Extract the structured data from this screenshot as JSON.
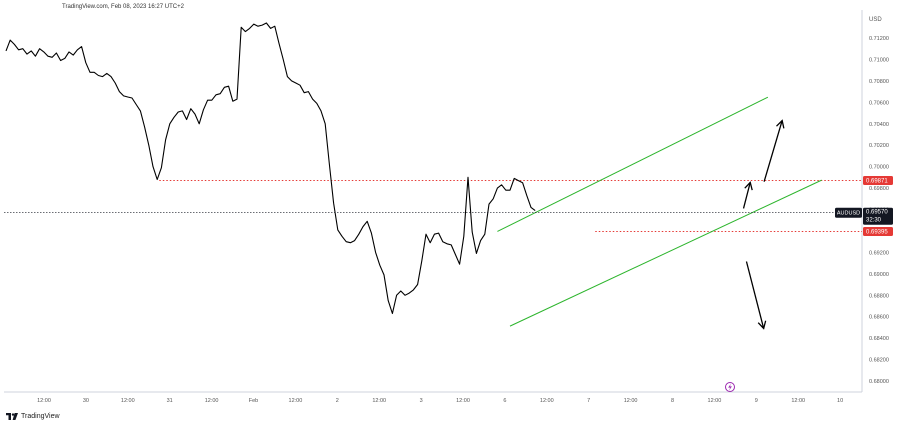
{
  "header": {
    "source": "TradingView.com, Feb 08, 2023 16:27 UTC+2"
  },
  "footer": {
    "brand": "TradingView"
  },
  "price_axis": {
    "currency": "USD",
    "ticks": [
      "0.71200",
      "0.71000",
      "0.70800",
      "0.70600",
      "0.70400",
      "0.70200",
      "0.70000",
      "0.69800",
      "0.69600",
      "0.69400",
      "0.69200",
      "0.69000",
      "0.68800",
      "0.68600",
      "0.68400",
      "0.68200",
      "0.68000"
    ],
    "current_symbol": "AUDUSD",
    "current_price": "0.69570",
    "countdown": "32:30",
    "resistance_label": "0.69871",
    "support_label": "0.69395"
  },
  "time_axis": {
    "labels": [
      "12:00",
      "30",
      "12:00",
      "31",
      "12:00",
      "Feb",
      "12:00",
      "2",
      "12:00",
      "3",
      "12:00",
      "6",
      "12:00",
      "7",
      "12:00",
      "8",
      "12:00",
      "9",
      "12:00",
      "10"
    ]
  },
  "colors": {
    "price_line": "#000000",
    "channel": "#2db52d",
    "level": "#e53935",
    "label_bg": "#e53935",
    "current_bg": "#131722",
    "marker": "#9c27b0"
  },
  "icons": {
    "event_marker": "lightning-icon",
    "brand": "tradingview-logo-icon"
  },
  "chart_data": {
    "type": "line",
    "title": "",
    "xlabel": "",
    "ylabel": "USD",
    "ylim": [
      0.6791,
      0.7133
    ],
    "x_unit": "bar index (hourly, trading hours only)",
    "series": [
      {
        "name": "AUDUSD",
        "values": [
          0.7108,
          0.7118,
          0.7114,
          0.7109,
          0.711,
          0.7105,
          0.7108,
          0.7103,
          0.711,
          0.7107,
          0.7103,
          0.7102,
          0.7106,
          0.7099,
          0.7101,
          0.7107,
          0.7104,
          0.7109,
          0.7112,
          0.7097,
          0.7088,
          0.7088,
          0.7085,
          0.7084,
          0.7087,
          0.7084,
          0.7078,
          0.707,
          0.7066,
          0.7065,
          0.7064,
          0.7058,
          0.7052,
          0.7037,
          0.702,
          0.7,
          0.6988,
          0.6999,
          0.7025,
          0.704,
          0.7046,
          0.7051,
          0.7052,
          0.7044,
          0.7054,
          0.7049,
          0.704,
          0.7053,
          0.7062,
          0.7062,
          0.7067,
          0.7068,
          0.7074,
          0.7075,
          0.7061,
          0.7063,
          0.713,
          0.7126,
          0.7129,
          0.7133,
          0.7131,
          0.7132,
          0.7134,
          0.7129,
          0.7131,
          0.7115,
          0.71,
          0.7084,
          0.708,
          0.7078,
          0.7076,
          0.7069,
          0.707,
          0.7063,
          0.7059,
          0.7052,
          0.704,
          0.7002,
          0.6966,
          0.6941,
          0.6935,
          0.693,
          0.6929,
          0.6931,
          0.6937,
          0.6944,
          0.6949,
          0.6938,
          0.692,
          0.6908,
          0.6899,
          0.6875,
          0.6863,
          0.688,
          0.6884,
          0.688,
          0.6882,
          0.6885,
          0.689,
          0.6912,
          0.6937,
          0.6929,
          0.6937,
          0.6938,
          0.693,
          0.6928,
          0.6927,
          0.6918,
          0.6909,
          0.6935,
          0.699,
          0.6939,
          0.6919,
          0.6931,
          0.6937,
          0.6965,
          0.697,
          0.698,
          0.6983,
          0.6978,
          0.6978,
          0.6989,
          0.6987,
          0.6985,
          0.6973,
          0.6962,
          0.6959
        ]
      }
    ],
    "channel_lines": [
      {
        "name": "upper",
        "x": [
          117.0,
          181.4
        ],
        "y": [
          0.69395,
          0.70648
        ]
      },
      {
        "name": "lower",
        "x": [
          120.0,
          194.2
        ],
        "y": [
          0.68512,
          0.69874
        ]
      }
    ],
    "horizontal_levels": [
      {
        "name": "resistance",
        "y": 0.69871,
        "x_from": 36.5
      },
      {
        "name": "support",
        "y": 0.69395,
        "x_from": 140.3
      }
    ],
    "projection_arrows": [
      {
        "name": "up-large",
        "x": [
          180.5,
          184.8
        ],
        "y": [
          0.6986,
          0.7043
        ]
      },
      {
        "name": "up-small",
        "x": [
          175.6,
          177.2
        ],
        "y": [
          0.6961,
          0.69853
        ]
      },
      {
        "name": "down",
        "x": [
          176.3,
          180.4
        ],
        "y": [
          0.69115,
          0.6849
        ]
      }
    ],
    "grid": false,
    "legend": "none"
  }
}
